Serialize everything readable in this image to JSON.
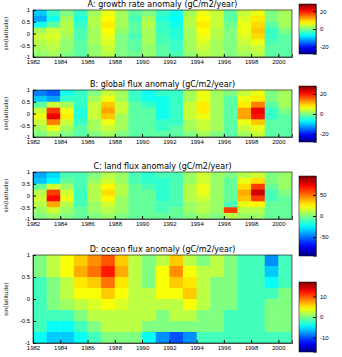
{
  "chart_data": [
    {
      "type": "heatmap",
      "title": "A: growth rate anomaly (gC/m2/year)",
      "y_label": "sin(latitude)",
      "x": [
        1982.5,
        1983.5,
        1984.5,
        1985.5,
        1986.5,
        1987.5,
        1988.5,
        1989.5,
        1990.5,
        1991.5,
        1992.5,
        1993.5,
        1994.5,
        1995.5,
        1996.5,
        1997.5,
        1998.5,
        1999.5,
        2000.5
      ],
      "y": [
        0.875,
        0.625,
        0.375,
        0.125,
        -0.125,
        -0.375,
        -0.625,
        -0.875
      ],
      "cells": [
        [
          -10,
          -4,
          0,
          -4,
          2,
          6,
          2,
          -2,
          0,
          -4,
          -6,
          2,
          6,
          4,
          -2,
          4,
          6,
          0,
          2
        ],
        [
          -12,
          -6,
          2,
          -5,
          3,
          7,
          2,
          -3,
          2,
          -5,
          -7,
          3,
          7,
          4,
          -2,
          5,
          8,
          0,
          2
        ],
        [
          -6,
          -2,
          3,
          -4,
          3,
          8,
          2,
          -2,
          3,
          -4,
          -6,
          3,
          8,
          4,
          -1,
          6,
          9,
          -2,
          2
        ],
        [
          2,
          4,
          3,
          -3,
          2,
          7,
          1,
          -2,
          2,
          -4,
          -5,
          2,
          7,
          3,
          0,
          6,
          10,
          -4,
          0
        ],
        [
          4,
          5,
          2,
          -3,
          2,
          6,
          0,
          -3,
          2,
          -3,
          -5,
          2,
          6,
          3,
          0,
          5,
          9,
          -4,
          -2
        ],
        [
          3,
          4,
          1,
          -2,
          2,
          5,
          0,
          -2,
          2,
          -3,
          -4,
          2,
          5,
          2,
          0,
          4,
          6,
          -3,
          -2
        ],
        [
          2,
          3,
          1,
          -2,
          1,
          4,
          0,
          -2,
          1,
          -2,
          -4,
          2,
          4,
          2,
          0,
          3,
          4,
          -2,
          -2
        ],
        [
          1,
          2,
          0,
          -2,
          1,
          3,
          0,
          -1,
          1,
          -2,
          -3,
          1,
          3,
          2,
          0,
          2,
          3,
          -2,
          -2
        ]
      ],
      "xlim": [
        1982,
        2001
      ],
      "xticks": [
        1982,
        1984,
        1986,
        1988,
        1990,
        1992,
        1994,
        1996,
        1998,
        2000
      ],
      "ylim": [
        -1,
        1
      ],
      "yticks": [
        -1,
        -0.5,
        0,
        0.5,
        1
      ],
      "colorbar_range": [
        -28,
        28
      ],
      "colorbar_ticks": [
        -20,
        0,
        20
      ]
    },
    {
      "type": "heatmap",
      "title": "B: global flux anomaly (gC/m2/year)",
      "y_label": "sin(latitude)",
      "x": [
        1982.5,
        1983.5,
        1984.5,
        1985.5,
        1986.5,
        1987.5,
        1988.5,
        1989.5,
        1990.5,
        1991.5,
        1992.5,
        1993.5,
        1994.5,
        1995.5,
        1996.5,
        1997.5,
        1998.5,
        1999.5,
        2000.5
      ],
      "y": [
        0.875,
        0.625,
        0.375,
        0.125,
        -0.125,
        -0.375,
        -0.625,
        -0.875
      ],
      "cells": [
        [
          -14,
          -16,
          -6,
          -4,
          0,
          4,
          2,
          -4,
          -6,
          -4,
          -4,
          2,
          6,
          2,
          0,
          4,
          6,
          0,
          2
        ],
        [
          -10,
          -12,
          -4,
          -4,
          2,
          6,
          2,
          -4,
          -6,
          -6,
          -4,
          2,
          6,
          2,
          -2,
          6,
          8,
          0,
          2
        ],
        [
          -2,
          4,
          2,
          -4,
          4,
          10,
          4,
          -2,
          -4,
          -6,
          -4,
          4,
          8,
          2,
          -2,
          8,
          14,
          -2,
          2
        ],
        [
          4,
          18,
          6,
          -5,
          4,
          12,
          4,
          -2,
          -2,
          -6,
          -4,
          4,
          8,
          2,
          -2,
          12,
          22,
          -4,
          0
        ],
        [
          6,
          22,
          8,
          -5,
          4,
          10,
          2,
          -2,
          -2,
          -6,
          -4,
          4,
          6,
          2,
          -2,
          12,
          20,
          -4,
          -2
        ],
        [
          4,
          14,
          4,
          -4,
          2,
          6,
          2,
          -2,
          -2,
          -4,
          -4,
          2,
          4,
          2,
          -2,
          6,
          10,
          -2,
          -2
        ],
        [
          2,
          6,
          2,
          -2,
          2,
          4,
          2,
          -2,
          -2,
          -4,
          -2,
          2,
          4,
          2,
          -2,
          4,
          6,
          -2,
          -2
        ],
        [
          0,
          2,
          0,
          -2,
          0,
          2,
          0,
          -2,
          -2,
          -2,
          -2,
          0,
          2,
          0,
          -2,
          2,
          4,
          -2,
          -2
        ]
      ],
      "xlim": [
        1982,
        2001
      ],
      "xticks": [
        1982,
        1984,
        1986,
        1988,
        1990,
        1992,
        1994,
        1996,
        1998,
        2000
      ],
      "ylim": [
        -1,
        1
      ],
      "yticks": [
        -1,
        -0.5,
        0,
        0.5,
        1
      ],
      "colorbar_range": [
        -28,
        28
      ],
      "colorbar_ticks": [
        -20,
        0,
        20
      ]
    },
    {
      "type": "heatmap",
      "title": "C: land flux anomaly (gC/m2/year)",
      "y_label": "sin(latitude)",
      "x": [
        1982.5,
        1983.5,
        1984.5,
        1985.5,
        1986.5,
        1987.5,
        1988.5,
        1989.5,
        1990.5,
        1991.5,
        1992.5,
        1993.5,
        1994.5,
        1995.5,
        1996.5,
        1997.5,
        1998.5,
        1999.5,
        2000.5
      ],
      "y": [
        0.875,
        0.625,
        0.375,
        0.125,
        -0.125,
        -0.375,
        -0.625,
        -0.875
      ],
      "cells": [
        [
          -40,
          -30,
          -10,
          -10,
          0,
          10,
          5,
          -10,
          -15,
          -10,
          -10,
          5,
          15,
          5,
          0,
          10,
          15,
          0,
          5
        ],
        [
          -35,
          -25,
          -5,
          -10,
          5,
          15,
          5,
          -10,
          -15,
          -15,
          -10,
          5,
          15,
          5,
          -5,
          20,
          30,
          0,
          5
        ],
        [
          -5,
          15,
          5,
          -10,
          10,
          25,
          10,
          -5,
          -10,
          -15,
          -10,
          10,
          20,
          5,
          -5,
          30,
          60,
          -5,
          5
        ],
        [
          10,
          60,
          15,
          -12,
          10,
          30,
          10,
          -5,
          -5,
          -15,
          -10,
          10,
          20,
          5,
          -5,
          40,
          80,
          -10,
          0
        ],
        [
          15,
          70,
          20,
          -12,
          10,
          25,
          5,
          -5,
          -5,
          -15,
          -10,
          10,
          15,
          5,
          -5,
          35,
          60,
          -10,
          -5
        ],
        [
          10,
          40,
          10,
          -10,
          5,
          15,
          5,
          -5,
          -5,
          -10,
          -10,
          5,
          10,
          5,
          -10,
          20,
          25,
          -5,
          -5
        ],
        [
          5,
          15,
          5,
          -5,
          5,
          10,
          5,
          -5,
          -5,
          -10,
          -5,
          5,
          10,
          5,
          60,
          10,
          10,
          -5,
          -5
        ],
        [
          0,
          5,
          0,
          -5,
          0,
          5,
          0,
          -5,
          -5,
          -5,
          -5,
          0,
          5,
          0,
          10,
          5,
          5,
          -5,
          -5
        ]
      ],
      "xlim": [
        1982,
        2001
      ],
      "xticks": [
        1982,
        1984,
        1986,
        1988,
        1990,
        1992,
        1994,
        1996,
        1998,
        2000
      ],
      "ylim": [
        -1,
        1
      ],
      "yticks": [
        -1,
        -0.5,
        0,
        0.5,
        1
      ],
      "colorbar_range": [
        -95,
        95
      ],
      "colorbar_ticks": [
        -50,
        0,
        50
      ]
    },
    {
      "type": "heatmap",
      "title": "D: ocean flux anomaly (gC/m2/year)",
      "y_label": "sin(latitude)",
      "x": [
        1982.5,
        1983.5,
        1984.5,
        1985.5,
        1986.5,
        1987.5,
        1988.5,
        1989.5,
        1990.5,
        1991.5,
        1992.5,
        1993.5,
        1994.5,
        1995.5,
        1996.5,
        1997.5,
        1998.5,
        1999.5,
        2000.5
      ],
      "y": [
        0.875,
        0.625,
        0.375,
        0.125,
        -0.125,
        -0.375,
        -0.625,
        -0.875
      ],
      "cells": [
        [
          0,
          2,
          4,
          6,
          8,
          10,
          6,
          2,
          0,
          2,
          6,
          2,
          0,
          2,
          0,
          -2,
          -2,
          -8,
          -2
        ],
        [
          0,
          2,
          4,
          7,
          9,
          12,
          7,
          2,
          0,
          4,
          8,
          4,
          2,
          2,
          0,
          -2,
          -2,
          -6,
          -2
        ],
        [
          -2,
          0,
          2,
          5,
          6,
          9,
          5,
          2,
          0,
          4,
          6,
          5,
          2,
          0,
          0,
          -2,
          -2,
          -4,
          -2
        ],
        [
          -2,
          0,
          2,
          4,
          4,
          6,
          4,
          2,
          2,
          4,
          4,
          6,
          2,
          0,
          0,
          -2,
          -2,
          -2,
          0
        ],
        [
          -2,
          0,
          1,
          2,
          3,
          4,
          3,
          2,
          2,
          2,
          2,
          4,
          2,
          0,
          0,
          -2,
          -2,
          0,
          0
        ],
        [
          -2,
          -2,
          -2,
          0,
          2,
          2,
          2,
          2,
          2,
          0,
          2,
          2,
          0,
          0,
          -2,
          -2,
          -2,
          0,
          0
        ],
        [
          -2,
          -4,
          -4,
          -2,
          0,
          2,
          2,
          2,
          0,
          0,
          0,
          0,
          0,
          0,
          -2,
          -2,
          -2,
          0,
          0
        ],
        [
          -4,
          -6,
          -6,
          -4,
          -2,
          0,
          0,
          0,
          -4,
          -8,
          -10,
          -8,
          -2,
          -2,
          -2,
          -2,
          -2,
          -2,
          -2
        ]
      ],
      "xlim": [
        1982,
        2001
      ],
      "xticks": [
        1982,
        1984,
        1986,
        1988,
        1990,
        1992,
        1994,
        1996,
        1998,
        2000
      ],
      "ylim": [
        -1,
        1
      ],
      "yticks": [
        -1,
        -0.5,
        0,
        0.5,
        1
      ],
      "colorbar_range": [
        -17,
        17
      ],
      "colorbar_ticks": [
        -10,
        0,
        10
      ]
    }
  ]
}
